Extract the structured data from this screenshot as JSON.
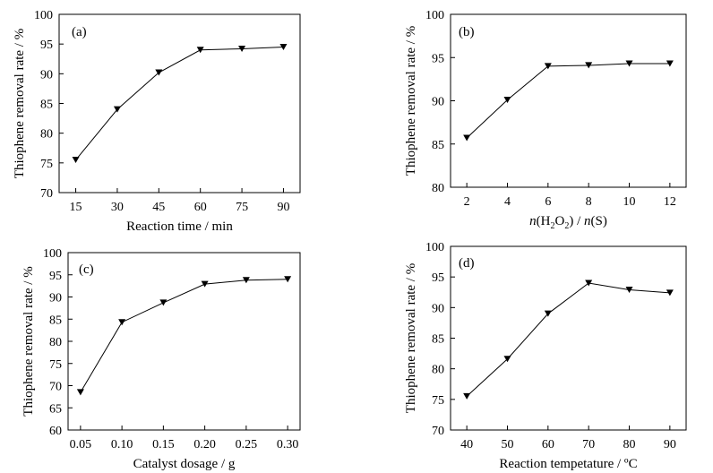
{
  "chart_data": [
    {
      "type": "line",
      "panel_label": "(a)",
      "x": [
        15,
        30,
        45,
        60,
        75,
        90
      ],
      "xticks": [
        "15",
        "30",
        "45",
        "60",
        "75",
        "90"
      ],
      "xlim": [
        9,
        96
      ],
      "series": [
        {
          "values": [
            75.5,
            84.0,
            90.2,
            94.0,
            94.2,
            94.5
          ]
        }
      ],
      "xlabel": "Reaction time / min",
      "ylabel": "Thiophene removal rate / %",
      "ylim": [
        70,
        100
      ],
      "yticks": [
        70,
        75,
        80,
        85,
        90,
        95,
        100
      ],
      "marker": "down-triangle",
      "grid": false
    },
    {
      "type": "line",
      "panel_label": "(b)",
      "x": [
        2,
        4,
        6,
        8,
        10,
        12
      ],
      "xticks": [
        "2",
        "4",
        "6",
        "8",
        "10",
        "12"
      ],
      "xlim": [
        1.2,
        12.8
      ],
      "series": [
        {
          "values": [
            85.7,
            90.1,
            94.0,
            94.1,
            94.3,
            94.3
          ]
        }
      ],
      "xlabel": "n(H2O2) / n(S)",
      "xlabel_parts": [
        {
          "t": "n",
          "i": true
        },
        {
          "t": "(H"
        },
        {
          "t": "2",
          "sub": true
        },
        {
          "t": "O"
        },
        {
          "t": "2",
          "sub": true
        },
        {
          "t": ") / "
        },
        {
          "t": "n",
          "i": true
        },
        {
          "t": "(S)"
        }
      ],
      "ylabel": "Thiophene removal rate / %",
      "ylim": [
        80,
        100
      ],
      "yticks": [
        80,
        85,
        90,
        95,
        100
      ],
      "marker": "down-triangle",
      "grid": false
    },
    {
      "type": "line",
      "panel_label": "(c)",
      "x": [
        0.05,
        0.1,
        0.15,
        0.2,
        0.25,
        0.3
      ],
      "xticks": [
        "0.05",
        "0.10",
        "0.15",
        "0.20",
        "0.25",
        "0.30"
      ],
      "xlim": [
        0.035,
        0.315
      ],
      "series": [
        {
          "values": [
            68.5,
            84.3,
            88.7,
            92.9,
            93.8,
            94.0
          ]
        }
      ],
      "xlabel": "Catalyst dosage / g",
      "ylabel": "Thiophene removal rate / %",
      "ylim": [
        60,
        100
      ],
      "yticks": [
        60,
        65,
        70,
        75,
        80,
        85,
        90,
        95,
        100
      ],
      "marker": "down-triangle",
      "grid": false
    },
    {
      "type": "line",
      "panel_label": "(d)",
      "x": [
        40,
        50,
        60,
        70,
        80,
        90
      ],
      "xticks": [
        "40",
        "50",
        "60",
        "70",
        "80",
        "90"
      ],
      "xlim": [
        36,
        94
      ],
      "series": [
        {
          "values": [
            75.5,
            81.6,
            89.0,
            94.0,
            92.9,
            92.4
          ]
        }
      ],
      "xlabel": "Reaction tempetature / ºC",
      "ylabel": "Thiophene removal rate / %",
      "ylim": [
        70,
        100
      ],
      "yticks": [
        70,
        75,
        80,
        85,
        90,
        95,
        100
      ],
      "marker": "down-triangle",
      "grid": false
    }
  ]
}
